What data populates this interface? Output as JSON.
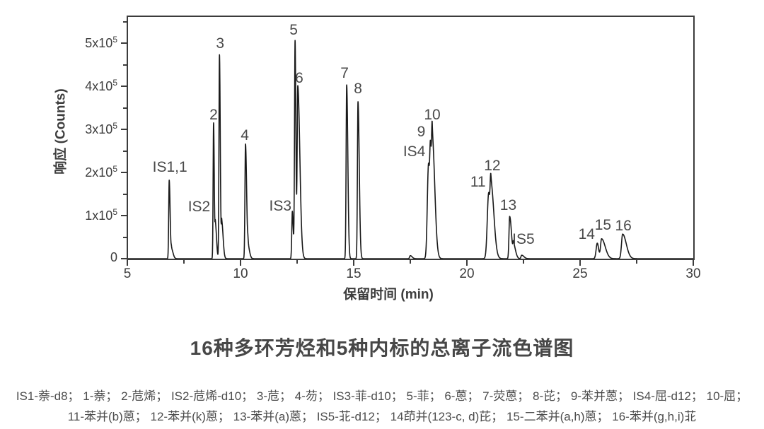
{
  "caption": {
    "title": "16种多环芳烃和5种内标的总离子流色谱图"
  },
  "legend": {
    "line1": "IS1-萘-d8； 1-萘； 2-苊烯； IS2-苊烯-d10； 3-苊； 4-芴； IS3-菲-d10； 5-菲； 6-蒽； 7-荧蒽； 8-芘； 9-苯并蒽； IS4-屈-d12； 10-屈；",
    "line2": "11-苯并(b)蒽； 12-苯并(k)蒽； 13-苯并(a)蒽； IS5-苝-d12； 14茚并(123-c, d)芘； 15-二苯并(a,h)蒽； 16-苯并(g,h,i)苝"
  },
  "chart_data": {
    "type": "line",
    "title": "16种多环芳烃和5种内标的总离子流色谱图",
    "xlabel": "保留时间 (min)",
    "ylabel": "响应 (Counts)",
    "xlim": [
      5,
      30
    ],
    "ylim": [
      0,
      562000
    ],
    "grid": false,
    "legend_position": "none",
    "line_color": "#1a1a1a",
    "frame_color": "#3c3c3c",
    "x_major_ticks": [
      5,
      10,
      15,
      20,
      25,
      30
    ],
    "x_minor_ticks": [
      7.5,
      12.5,
      17.5,
      22.5,
      27.5
    ],
    "y_major_ticks": [
      {
        "value": 0,
        "label": "0"
      },
      {
        "value": 100000,
        "label": "1x10^5"
      },
      {
        "value": 200000,
        "label": "2x10^5"
      },
      {
        "value": 300000,
        "label": "3x10^5"
      },
      {
        "value": 400000,
        "label": "4x10^5"
      },
      {
        "value": 500000,
        "label": "5x10^5"
      }
    ],
    "y_minor_ticks": [
      50000,
      150000,
      250000,
      350000,
      450000,
      550000
    ],
    "peaks": [
      {
        "label": "IS1,1",
        "rt_min": 6.85,
        "height_counts": 182000,
        "wl": 0.022,
        "wr": 0.04,
        "ldx": 1,
        "ldy": -18
      },
      {
        "label": "",
        "rt_min": 6.95,
        "height_counts": 22000,
        "wl": 0.018,
        "wr": 0.07
      },
      {
        "label": "2",
        "rt_min": 8.81,
        "height_counts": 315000,
        "wl": 0.02,
        "wr": 0.03,
        "ldx": 0,
        "ldy": -11
      },
      {
        "label": "IS2",
        "rt_min": 8.89,
        "height_counts": 80000,
        "wl": 0.018,
        "wr": 0.05,
        "ldx": -23,
        "ldy": -19
      },
      {
        "label": "3",
        "rt_min": 9.07,
        "height_counts": 473000,
        "wl": 0.022,
        "wr": 0.035,
        "ldx": 1,
        "ldy": -15
      },
      {
        "label": "",
        "rt_min": 9.17,
        "height_counts": 85000,
        "wl": 0.018,
        "wr": 0.06
      },
      {
        "label": "4",
        "rt_min": 10.22,
        "height_counts": 266000,
        "wl": 0.024,
        "wr": 0.05,
        "ldx": -1,
        "ldy": -12
      },
      {
        "label": "",
        "rt_min": 10.33,
        "height_counts": 28000,
        "wl": 0.018,
        "wr": 0.07
      },
      {
        "label": "IS3",
        "rt_min": 12.29,
        "height_counts": 110000,
        "wl": 0.025,
        "wr": 0.04,
        "ldx": -17,
        "ldy": -7
      },
      {
        "label": "5",
        "rt_min": 12.41,
        "height_counts": 505000,
        "wl": 0.024,
        "wr": 0.035,
        "ldx": -2,
        "ldy": -14
      },
      {
        "label": "6",
        "rt_min": 12.53,
        "height_counts": 400000,
        "wl": 0.028,
        "wr": 0.09,
        "ldx": 2,
        "ldy": -10
      },
      {
        "label": "7",
        "rt_min": 14.69,
        "height_counts": 403000,
        "wl": 0.025,
        "wr": 0.05,
        "ldx": -3,
        "ldy": -16
      },
      {
        "label": "8",
        "rt_min": 15.19,
        "height_counts": 364000,
        "wl": 0.025,
        "wr": 0.055,
        "ldx": 0,
        "ldy": -18
      },
      {
        "label": "",
        "rt_min": 17.5,
        "height_counts": 7000,
        "wl": 0.03,
        "wr": 0.08
      },
      {
        "label": "IS4",
        "rt_min": 18.3,
        "height_counts": 210000,
        "wl": 0.05,
        "wr": 0.04,
        "ldx": -20,
        "ldy": -17
      },
      {
        "label": "9",
        "rt_min": 18.39,
        "height_counts": 250000,
        "wl": 0.035,
        "wr": 0.04,
        "ldx": -13,
        "ldy": -11
      },
      {
        "label": "10",
        "rt_min": 18.47,
        "height_counts": 280000,
        "wl": 0.03,
        "wr": 0.11,
        "ldx": 0,
        "ldy": -12
      },
      {
        "label": "11",
        "rt_min": 20.96,
        "height_counts": 150000,
        "wl": 0.06,
        "wr": 0.05,
        "ldx": -15,
        "ldy": -15
      },
      {
        "label": "12",
        "rt_min": 21.06,
        "height_counts": 175000,
        "wl": 0.035,
        "wr": 0.13,
        "ldx": 2,
        "ldy": -12
      },
      {
        "label": "13",
        "rt_min": 21.89,
        "height_counts": 98000,
        "wl": 0.03,
        "wr": 0.08,
        "ldx": -2,
        "ldy": -15
      },
      {
        "label": "IS5",
        "rt_min": 22.06,
        "height_counts": 31000,
        "wl": 0.025,
        "wr": 0.09,
        "ldx": 14,
        "ldy": -2
      },
      {
        "label": "",
        "rt_min": 22.42,
        "height_counts": 8000,
        "wl": 0.03,
        "wr": 0.1
      },
      {
        "label": "14",
        "rt_min": 25.76,
        "height_counts": 36000,
        "wl": 0.05,
        "wr": 0.06,
        "ldx": -15,
        "ldy": -12
      },
      {
        "label": "15",
        "rt_min": 25.95,
        "height_counts": 46000,
        "wl": 0.045,
        "wr": 0.16,
        "ldx": 2,
        "ldy": -19
      },
      {
        "label": "16",
        "rt_min": 26.88,
        "height_counts": 57000,
        "wl": 0.05,
        "wr": 0.16,
        "ldx": 1,
        "ldy": -11
      }
    ]
  }
}
